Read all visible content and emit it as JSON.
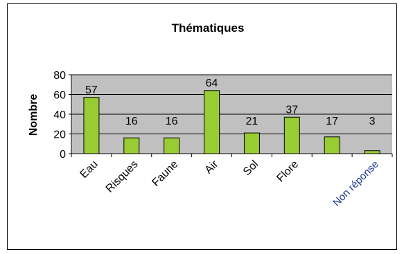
{
  "chart_data": {
    "type": "bar",
    "title": "Thématiques",
    "ylabel": "Nombre",
    "xlabel": "",
    "categories": [
      "Eau",
      "Risques",
      "Faune",
      "Air",
      "Sol",
      "Flore",
      "",
      "Non réponse"
    ],
    "values": [
      57,
      16,
      16,
      64,
      21,
      37,
      17,
      3
    ],
    "ylim": [
      0,
      80
    ],
    "yticks": [
      0,
      20,
      40,
      60,
      80
    ],
    "grid": true,
    "legend": "none",
    "colors": {
      "bar_fill": "#99cc33",
      "bar_stroke": "#000000",
      "plot_bg": "#c0c0c0",
      "special_label": "#1f3a8a"
    }
  }
}
